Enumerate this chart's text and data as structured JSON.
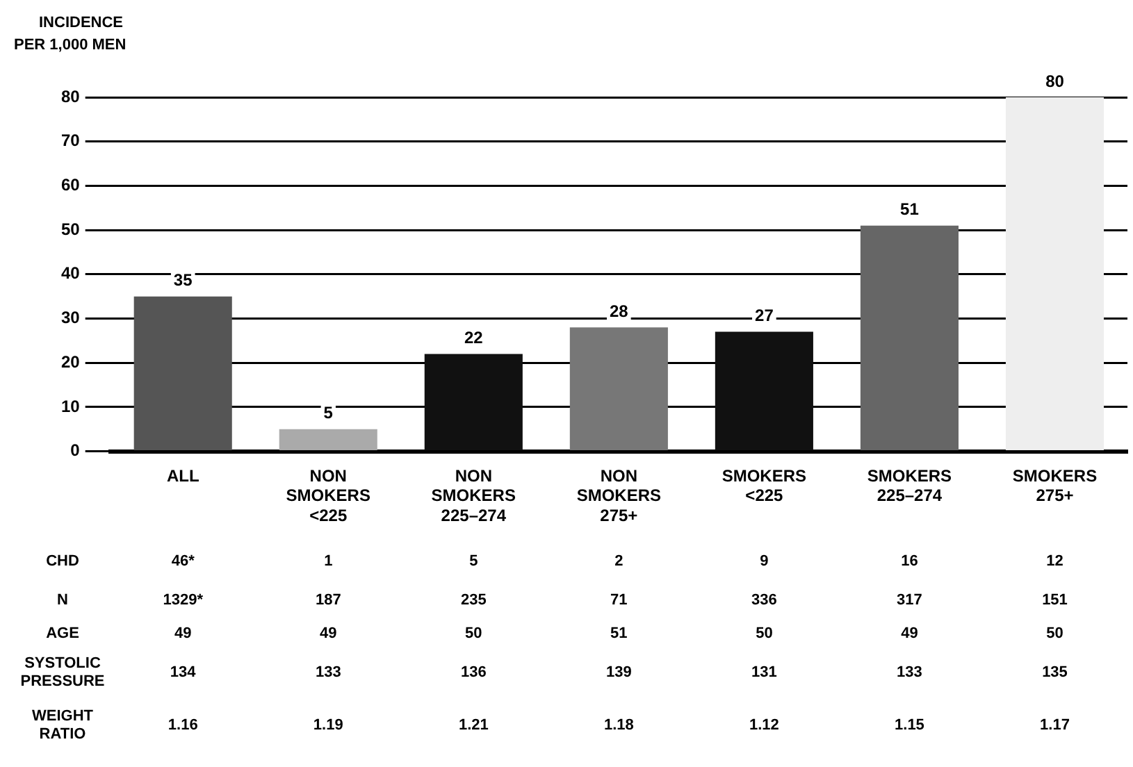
{
  "chart_data": {
    "type": "bar",
    "ylabel": "INCIDENCE PER 1,000 MEN",
    "categories": [
      "ALL",
      "NON SMOKERS <225",
      "NON SMOKERS 225–274",
      "NON SMOKERS 275+",
      "SMOKERS <225",
      "SMOKERS 225–274",
      "SMOKERS 275+"
    ],
    "values": [
      35,
      5,
      22,
      28,
      27,
      51,
      80
    ],
    "colors": [
      "#555555",
      "#aaaaaa",
      "#111111",
      "#777777",
      "#111111",
      "#666666",
      "#eeeeee"
    ],
    "ylim": [
      0,
      80
    ],
    "yticks": [
      0,
      10,
      20,
      30,
      40,
      50,
      60,
      70,
      80
    ],
    "grid": "y",
    "data_labels": true,
    "annotations": [
      "CHD",
      "46*",
      "1",
      "5",
      "2",
      "9",
      "16",
      "12",
      "N",
      "1329*",
      "187",
      "235",
      "71",
      "336",
      "317",
      "151",
      "AGE",
      "49",
      "49",
      "50",
      "51",
      "50",
      "49",
      "50",
      "SYSTOLIC PRESSURE",
      "134",
      "133",
      "136",
      "139",
      "131",
      "133",
      "135",
      "WEIGHT RATIO",
      "1.16",
      "1.19",
      "1.21",
      "1.18",
      "1.12",
      "1.15",
      "1.17"
    ]
  }
}
